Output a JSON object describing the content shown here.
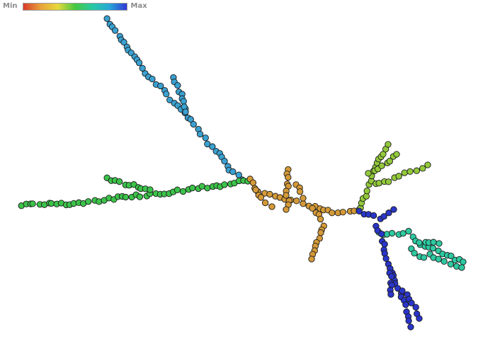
{
  "legend": {
    "min_label": "Min",
    "max_label": "Max",
    "gradient_colors": [
      "#d93a2b",
      "#e8a23a",
      "#e6d83a",
      "#46c83e",
      "#27c9a4",
      "#26a8d8",
      "#3137d6"
    ]
  },
  "node_style": {
    "stroke": "#1a1a1a",
    "edge_color": "#555555",
    "small_node_fill": "#ffffff"
  },
  "branches": [
    {
      "name": "cyan-branch",
      "color": "#3aa1d1"
    },
    {
      "name": "green-branch",
      "color": "#3cc34a"
    },
    {
      "name": "orange-center-branch",
      "color": "#d59a38"
    },
    {
      "name": "lime-branch",
      "color": "#93c93b"
    },
    {
      "name": "teal-branch",
      "color": "#2ec9a1"
    },
    {
      "name": "blue-branch",
      "color": "#2a35c9"
    }
  ]
}
